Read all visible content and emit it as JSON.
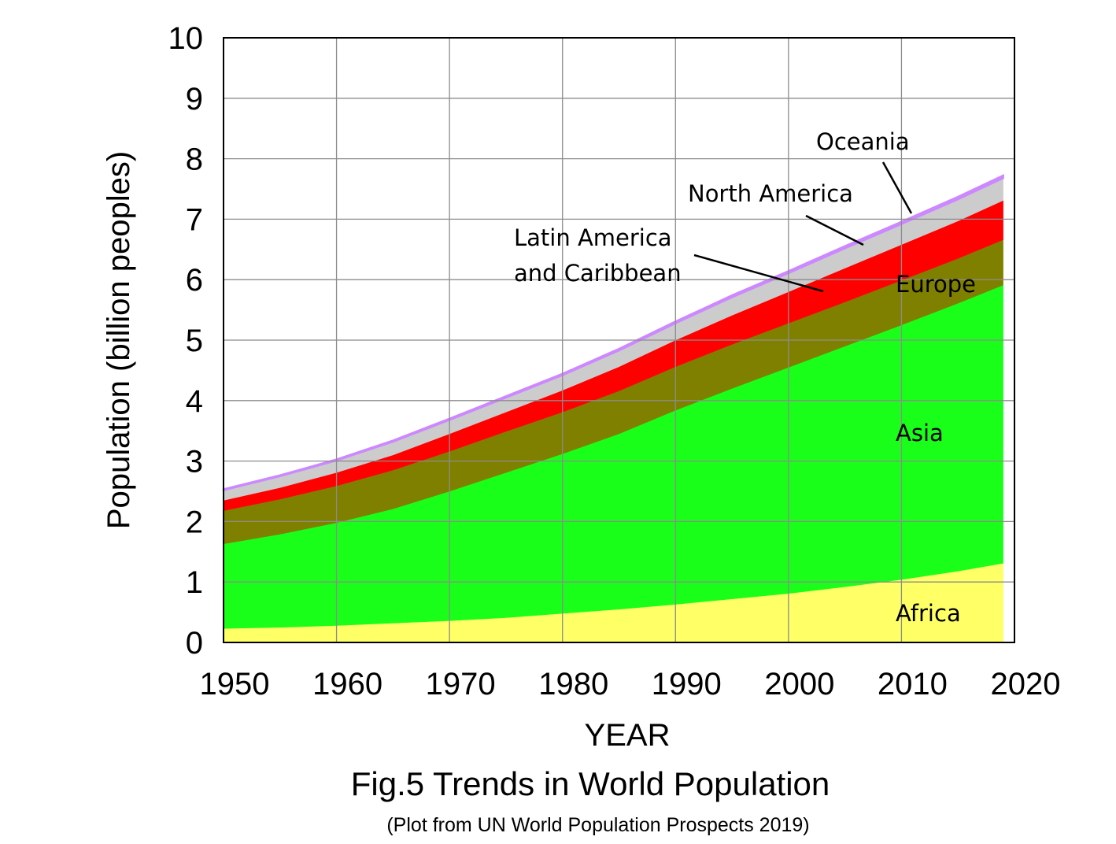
{
  "caption": {
    "title": "Fig.5 Trends in World Population",
    "subtitle": "(Plot from UN World Population Prospects 2019)"
  },
  "chart_data": {
    "type": "area",
    "stacked": true,
    "xlabel": "YEAR",
    "ylabel": "Population (billion peoples)",
    "xlim": [
      1950,
      2020
    ],
    "ylim": [
      0,
      10
    ],
    "x_ticks": [
      1950,
      1960,
      1970,
      1980,
      1990,
      2000,
      2010,
      2020
    ],
    "y_ticks": [
      0,
      1,
      2,
      3,
      4,
      5,
      6,
      7,
      8,
      9,
      10
    ],
    "grid": true,
    "legend": "none",
    "x": [
      1950,
      1955,
      1960,
      1965,
      1970,
      1975,
      1980,
      1985,
      1990,
      1995,
      2000,
      2005,
      2010,
      2015,
      2019
    ],
    "series": [
      {
        "name": "Africa",
        "color": "#ffff66",
        "values": [
          0.23,
          0.25,
          0.28,
          0.32,
          0.36,
          0.41,
          0.48,
          0.55,
          0.63,
          0.72,
          0.81,
          0.92,
          1.04,
          1.18,
          1.31
        ]
      },
      {
        "name": "Asia",
        "color": "#1aff1a",
        "values": [
          1.4,
          1.54,
          1.7,
          1.89,
          2.14,
          2.4,
          2.64,
          2.9,
          3.21,
          3.48,
          3.74,
          3.98,
          4.21,
          4.43,
          4.6
        ]
      },
      {
        "name": "Europe",
        "color": "#808000",
        "values": [
          0.55,
          0.58,
          0.61,
          0.64,
          0.66,
          0.68,
          0.69,
          0.71,
          0.72,
          0.73,
          0.73,
          0.73,
          0.74,
          0.74,
          0.75
        ]
      },
      {
        "name": "Latin America and Caribbean",
        "color": "#ff0000",
        "values": [
          0.17,
          0.19,
          0.22,
          0.25,
          0.29,
          0.32,
          0.36,
          0.4,
          0.44,
          0.48,
          0.52,
          0.56,
          0.59,
          0.62,
          0.65
        ]
      },
      {
        "name": "North America",
        "color": "#cccccc",
        "values": [
          0.17,
          0.19,
          0.2,
          0.22,
          0.23,
          0.24,
          0.25,
          0.27,
          0.28,
          0.3,
          0.31,
          0.33,
          0.34,
          0.36,
          0.37
        ]
      },
      {
        "name": "Oceania",
        "color": "#cc88ff",
        "values": [
          0.013,
          0.014,
          0.016,
          0.018,
          0.02,
          0.021,
          0.023,
          0.025,
          0.027,
          0.029,
          0.031,
          0.034,
          0.037,
          0.04,
          0.042
        ]
      }
    ],
    "annotations": [
      {
        "text": "Oceania",
        "series": "Oceania"
      },
      {
        "text": "North America",
        "series": "North America"
      },
      {
        "text": "Latin America",
        "series": "Latin America and Caribbean"
      },
      {
        "text": "and Caribbean",
        "series": "Latin America and Caribbean"
      },
      {
        "text": "Europe",
        "series": "Europe"
      },
      {
        "text": "Asia",
        "series": "Asia"
      },
      {
        "text": "Africa",
        "series": "Africa"
      }
    ]
  }
}
